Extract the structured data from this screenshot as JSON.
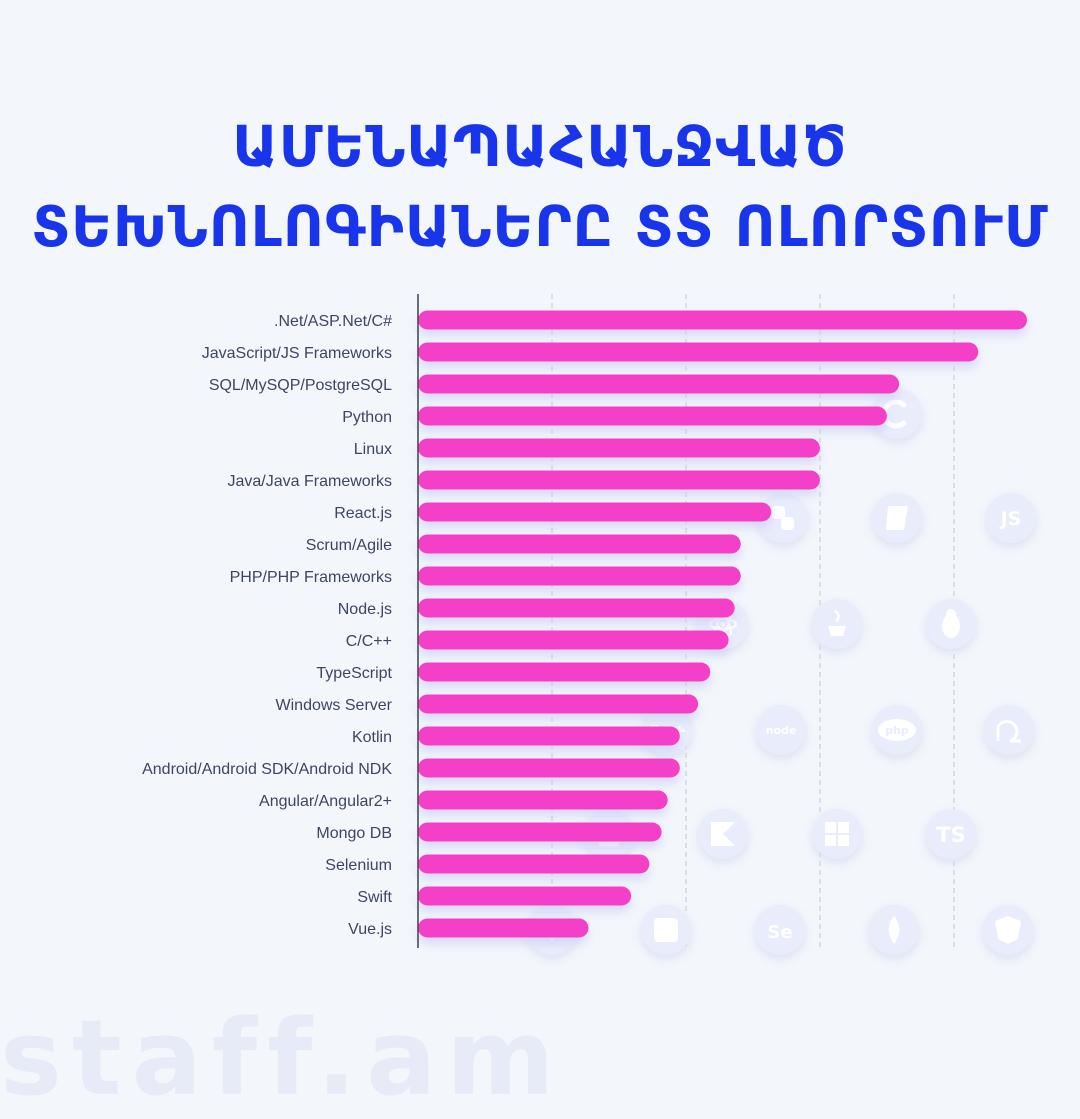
{
  "title_line1": "ԱՄԵՆԱՊԱՀԱՆՋՎԱԾ",
  "title_line2": "ՏԵԽՆՈԼՈԳԻԱՆԵՐԸ ՏՏ ՈԼՈՐՏՈՒՄ",
  "watermark": "staff.am",
  "colors": {
    "title": "#1835ec",
    "bar": "#f43fc9",
    "icon_circle": "#e9ecfb",
    "icon_glyph": "#ffffff"
  },
  "icons": [
    "c-sharp-icon",
    "python-icon",
    "sql-icon",
    "javascript-icon",
    "react-icon",
    "java-icon",
    "linux-icon",
    "cpp-icon",
    "nodejs-icon",
    "php-icon",
    "scrum-icon",
    "android-icon",
    "kotlin-icon",
    "windows-icon",
    "typescript-icon",
    "vue-icon",
    "swift-icon",
    "selenium-icon",
    "mongodb-icon",
    "angular-icon"
  ],
  "chart_data": {
    "type": "bar",
    "orientation": "horizontal",
    "title": "ԱՄԵՆԱՊԱՀԱՆՋՎԱԾ ՏԵԽՆՈԼՈԳԻԱՆԵՐԸ ՏՏ ՈԼՈՐՏՈՒՄ",
    "categories": [
      ".Net/ASP.Net/C#",
      "JavaScript/JS Frameworks",
      "SQL/MySQP/PostgreSQL",
      "Python",
      "Linux",
      "Java/Java Frameworks",
      "React.js",
      "Scrum/Agile",
      "PHP/PHP Frameworks",
      "Node.js",
      "C/C++",
      "TypeScript",
      "Windows Server",
      "Kotlin",
      "Android/Android SDK/Android NDK",
      "Angular/Angular2+",
      "Mongo DB",
      "Selenium",
      "Swift",
      "Vue.js"
    ],
    "values": [
      100,
      92,
      79,
      77,
      66,
      66,
      58,
      53,
      53,
      52,
      51,
      48,
      46,
      43,
      43,
      41,
      40,
      38,
      35,
      28
    ],
    "xlim": [
      0,
      100
    ],
    "grid": true,
    "xlabel": "",
    "ylabel": ""
  }
}
